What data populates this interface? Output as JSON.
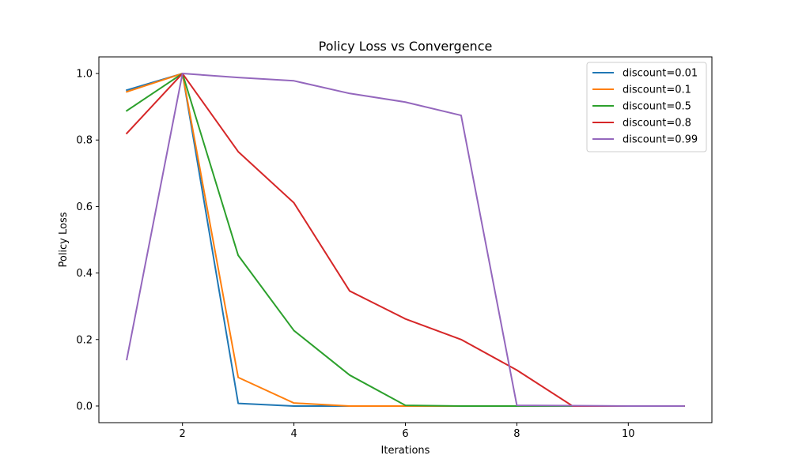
{
  "chart_data": {
    "type": "line",
    "title": "Policy Loss vs Convergence",
    "xlabel": "Iterations",
    "ylabel": "Policy Loss",
    "xlim": [
      0.5,
      11.5
    ],
    "ylim": [
      -0.05,
      1.05
    ],
    "xticks": [
      2,
      4,
      6,
      8,
      10
    ],
    "xtick_labels": [
      "2",
      "4",
      "6",
      "8",
      "10"
    ],
    "yticks": [
      0.0,
      0.2,
      0.4,
      0.6,
      0.8,
      1.0
    ],
    "ytick_labels": [
      "0.0",
      "0.2",
      "0.4",
      "0.6",
      "0.8",
      "1.0"
    ],
    "grid": false,
    "legend_position": "top-right",
    "x": [
      1,
      2,
      3,
      4,
      5,
      6,
      7,
      8,
      9,
      10,
      11
    ],
    "series": [
      {
        "name": "discount=0.01",
        "color": "#1f77b4",
        "values": [
          0.95,
          1.0,
          0.008,
          0.0,
          0.0,
          0.0,
          0.0,
          0.0,
          0.0,
          0.0,
          0.0
        ]
      },
      {
        "name": "discount=0.1",
        "color": "#ff7f0e",
        "values": [
          0.945,
          1.0,
          0.086,
          0.009,
          0.0,
          0.0,
          0.0,
          0.0,
          0.0,
          0.0,
          0.0
        ]
      },
      {
        "name": "discount=0.5",
        "color": "#2ca02c",
        "values": [
          0.888,
          1.0,
          0.453,
          0.227,
          0.093,
          0.002,
          0.0,
          0.0,
          0.0,
          0.0,
          0.0
        ]
      },
      {
        "name": "discount=0.8",
        "color": "#d62728",
        "values": [
          0.82,
          1.0,
          0.765,
          0.611,
          0.346,
          0.262,
          0.2,
          0.108,
          0.0,
          0.0,
          0.0
        ]
      },
      {
        "name": "discount=0.99",
        "color": "#9467bd",
        "values": [
          0.14,
          1.0,
          0.988,
          0.978,
          0.94,
          0.914,
          0.874,
          0.002,
          0.001,
          0.0,
          0.0
        ]
      }
    ]
  }
}
